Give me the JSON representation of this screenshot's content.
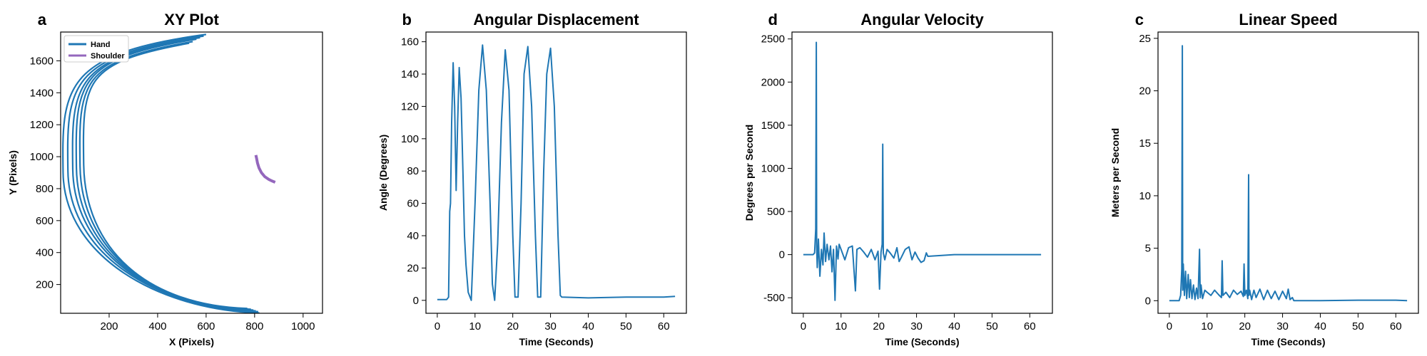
{
  "chart_data": [
    {
      "panel_label": "a",
      "type": "line",
      "title": "XY Plot",
      "xlabel": "X (Pixels)",
      "ylabel": "Y (Pixels)",
      "xlim": [
        0,
        1080
      ],
      "ylim": [
        20,
        1780
      ],
      "xticks": [
        200,
        400,
        600,
        800,
        1000
      ],
      "yticks": [
        200,
        400,
        600,
        800,
        1000,
        1200,
        1400,
        1600
      ],
      "legend_position": "top-left",
      "series": [
        {
          "name": "Hand",
          "color": "#1f77b4",
          "loops": [
            {
              "top": [
                600,
                1765
              ],
              "bottom": [
                820,
                22
              ],
              "leftmost_x": 10,
              "leftmost_y": 900
            },
            {
              "top": [
                590,
                1755
              ],
              "bottom": [
                815,
                30
              ],
              "leftmost_x": 30,
              "leftmost_y": 910
            },
            {
              "top": [
                575,
                1745
              ],
              "bottom": [
                805,
                35
              ],
              "leftmost_x": 50,
              "leftmost_y": 920
            },
            {
              "top": [
                560,
                1735
              ],
              "bottom": [
                795,
                40
              ],
              "leftmost_x": 65,
              "leftmost_y": 930
            },
            {
              "top": [
                545,
                1720
              ],
              "bottom": [
                785,
                45
              ],
              "leftmost_x": 80,
              "leftmost_y": 940
            },
            {
              "top": [
                530,
                1710
              ],
              "bottom": [
                770,
                50
              ],
              "leftmost_x": 95,
              "leftmost_y": 950
            }
          ]
        },
        {
          "name": "Shoulder",
          "color": "#9467bd",
          "points": [
            [
              805,
              1010
            ],
            [
              808,
              990
            ],
            [
              812,
              960
            ],
            [
              818,
              930
            ],
            [
              828,
              900
            ],
            [
              842,
              875
            ],
            [
              858,
              858
            ],
            [
              872,
              848
            ],
            [
              885,
              840
            ]
          ]
        }
      ]
    },
    {
      "panel_label": "b",
      "type": "line",
      "title": "Angular Displacement",
      "xlabel": "Time (Seconds)",
      "ylabel": "Angle (Degrees)",
      "xlim": [
        -3,
        66
      ],
      "ylim": [
        -8,
        166
      ],
      "xticks": [
        0,
        10,
        20,
        30,
        40,
        50,
        60
      ],
      "yticks": [
        0,
        20,
        40,
        60,
        80,
        100,
        120,
        140,
        160
      ],
      "series": [
        {
          "color": "#1f77b4",
          "x": [
            0,
            2.5,
            3,
            3.3,
            3.5,
            3.8,
            4.2,
            4.6,
            5.0,
            5.4,
            5.8,
            6.3,
            6.8,
            7.2,
            7.6,
            8.2,
            9.0,
            10.0,
            11.0,
            12.0,
            13.0,
            14.0,
            14.6,
            15.2,
            16.0,
            17.0,
            18.0,
            19.0,
            20.0,
            20.6,
            21.4,
            22.2,
            23.0,
            24.0,
            25.0,
            26.0,
            26.6,
            27.4,
            28.2,
            29.0,
            30.0,
            31.0,
            32.0,
            32.6,
            33.0,
            40,
            50,
            60,
            63
          ],
          "y": [
            0.5,
            0.5,
            2,
            55,
            60,
            110,
            147,
            120,
            68,
            110,
            144,
            125,
            80,
            40,
            22,
            5,
            0,
            60,
            130,
            158,
            130,
            60,
            10,
            0,
            35,
            110,
            155,
            130,
            40,
            2,
            2,
            60,
            140,
            157,
            120,
            40,
            2,
            2,
            80,
            140,
            156,
            120,
            40,
            3,
            2,
            1.5,
            2,
            2,
            2.5
          ]
        }
      ]
    },
    {
      "panel_label": "d",
      "type": "line",
      "title": "Angular Velocity",
      "xlabel": "Time (Seconds)",
      "ylabel": "Degrees per Second",
      "xlim": [
        -3,
        66
      ],
      "ylim": [
        -680,
        2580
      ],
      "xticks": [
        0,
        10,
        20,
        30,
        40,
        50,
        60
      ],
      "yticks": [
        -500,
        0,
        500,
        1000,
        1500,
        2000,
        2500
      ],
      "series": [
        {
          "color": "#1f77b4",
          "x": [
            0,
            2.6,
            3.0,
            3.3,
            3.45,
            3.55,
            3.7,
            4.0,
            4.4,
            4.8,
            5.2,
            5.5,
            5.9,
            6.3,
            6.8,
            7.2,
            7.6,
            8.0,
            8.4,
            8.8,
            9.2,
            9.5,
            10.0,
            11.0,
            12.0,
            13.0,
            13.8,
            14.2,
            15.0,
            16.0,
            17.0,
            18.0,
            19.0,
            19.8,
            20.2,
            20.6,
            20.9,
            21.05,
            21.2,
            21.6,
            22.2,
            23.0,
            24.0,
            24.8,
            25.4,
            26.0,
            27.0,
            28.0,
            28.8,
            29.6,
            30.4,
            31.2,
            32.0,
            32.6,
            33.0,
            40,
            50,
            60,
            63
          ],
          "y": [
            0,
            0,
            20,
            300,
            2460,
            80,
            -150,
            180,
            -250,
            60,
            -120,
            250,
            -80,
            120,
            -60,
            100,
            -200,
            60,
            -530,
            100,
            -50,
            120,
            60,
            -60,
            80,
            100,
            -420,
            60,
            80,
            30,
            -30,
            60,
            -60,
            40,
            -400,
            30,
            120,
            1280,
            20,
            -60,
            60,
            20,
            -40,
            80,
            -80,
            -30,
            60,
            90,
            -60,
            30,
            -40,
            -90,
            -70,
            20,
            -20,
            0,
            0,
            0,
            0
          ]
        }
      ]
    },
    {
      "panel_label": "c",
      "type": "line",
      "title": "Linear Speed",
      "xlabel": "Time (Seconds)",
      "ylabel": "Meters per Second",
      "xlim": [
        -3,
        66
      ],
      "ylim": [
        -1.2,
        25.6
      ],
      "xticks": [
        0,
        10,
        20,
        30,
        40,
        50,
        60
      ],
      "yticks": [
        0,
        5,
        10,
        15,
        20,
        25
      ],
      "series": [
        {
          "color": "#1f77b4",
          "x": [
            0,
            2.6,
            3.0,
            3.3,
            3.45,
            3.55,
            3.7,
            4.0,
            4.3,
            4.6,
            5.0,
            5.3,
            5.6,
            6.0,
            6.4,
            6.8,
            7.2,
            7.6,
            8.0,
            8.2,
            8.4,
            8.8,
            9.4,
            10.0,
            11.0,
            12.0,
            13.0,
            13.8,
            14.0,
            14.2,
            15.0,
            16.0,
            17.0,
            18.0,
            19.0,
            19.6,
            19.8,
            20.0,
            20.4,
            20.8,
            21.0,
            21.1,
            21.3,
            21.8,
            22.4,
            23.0,
            24.0,
            25.0,
            26.0,
            27.0,
            28.0,
            29.0,
            30.0,
            31.0,
            31.5,
            32.0,
            32.6,
            33.0,
            40,
            50,
            60,
            63
          ],
          "y": [
            0,
            0,
            0.5,
            3,
            24.3,
            1,
            3.5,
            0.5,
            2.8,
            0.2,
            2.5,
            0.3,
            2,
            0.2,
            1.5,
            0.1,
            1.2,
            0.2,
            4.9,
            0.3,
            1.5,
            0.2,
            1.0,
            0.8,
            0.5,
            1.0,
            0.6,
            0.3,
            3.8,
            0.5,
            0.8,
            0.3,
            1.0,
            0.6,
            0.9,
            0.4,
            3.5,
            0.5,
            1.0,
            0.2,
            12,
            0.5,
            1.0,
            0.1,
            1.0,
            0.3,
            1.1,
            0.1,
            1.0,
            0.2,
            0.9,
            0.1,
            0.9,
            0.2,
            1.1,
            0.1,
            0.3,
            0,
            0,
            0.05,
            0.05,
            0
          ]
        }
      ]
    }
  ]
}
